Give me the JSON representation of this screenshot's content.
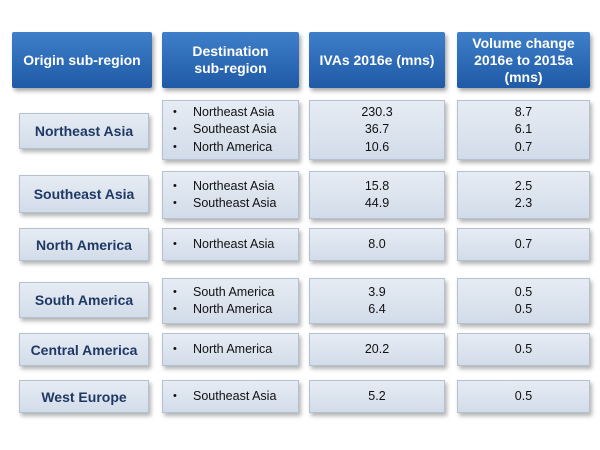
{
  "headers": {
    "origin": "Origin sub-region",
    "destination": "Destination\nsub-region",
    "ivas": "IVAs 2016e (mns)",
    "change": "Volume change\n2016e to 2015a\n(mns)"
  },
  "rows": [
    {
      "origin": "Northeast Asia",
      "destinations": [
        "Northeast Asia",
        "Southeast Asia",
        "North America"
      ],
      "ivas": [
        "230.3",
        "36.7",
        "10.6"
      ],
      "change": [
        "8.7",
        "6.1",
        "0.7"
      ]
    },
    {
      "origin": "Southeast Asia",
      "destinations": [
        "Northeast Asia",
        "Southeast Asia"
      ],
      "ivas": [
        "15.8",
        "44.9"
      ],
      "change": [
        "2.5",
        "2.3"
      ]
    },
    {
      "origin": "North America",
      "destinations": [
        "Northeast Asia"
      ],
      "ivas": [
        "8.0"
      ],
      "change": [
        "0.7"
      ]
    },
    {
      "origin": "South America",
      "destinations": [
        "South America",
        "North America"
      ],
      "ivas": [
        "3.9",
        "6.4"
      ],
      "change": [
        "0.5",
        "0.5"
      ]
    },
    {
      "origin": "Central America",
      "destinations": [
        "North America"
      ],
      "ivas": [
        "20.2"
      ],
      "change": [
        "0.5"
      ]
    },
    {
      "origin": "West Europe",
      "destinations": [
        "Southeast Asia"
      ],
      "ivas": [
        "5.2"
      ],
      "change": [
        "0.5"
      ]
    }
  ]
}
